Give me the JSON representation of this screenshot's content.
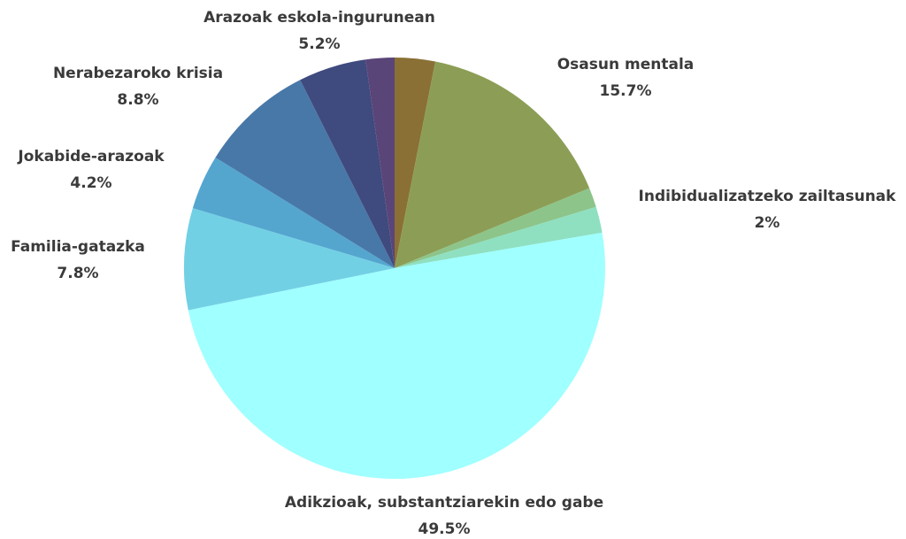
{
  "chart_data": {
    "type": "pie",
    "categories": [
      null,
      "Osasun mentala",
      null,
      "Indibidualizatzeko zailtasunak",
      "Adikzioak, substantziarekin edo gabe",
      "Familia-gatazka",
      "Jokabide-arazoak",
      "Nerabezaroko krisia",
      "Arazoak eskola-ingurunean",
      null
    ],
    "values": [
      3.1,
      15.7,
      1.5,
      2,
      49.5,
      7.8,
      4.2,
      8.8,
      5.2,
      2.2
    ],
    "value_labels": [
      null,
      "15.7%",
      null,
      "2%",
      "49.5%",
      "7.8%",
      "4.2%",
      "8.8%",
      "5.2%",
      null
    ],
    "colors": [
      "#8a7035",
      "#8c9e55",
      "#8dc48a",
      "#8ee0c0",
      "#a0ffff",
      "#72d0e4",
      "#54a6cf",
      "#4878a8",
      "#3f4a7e",
      "#5a4578"
    ]
  }
}
